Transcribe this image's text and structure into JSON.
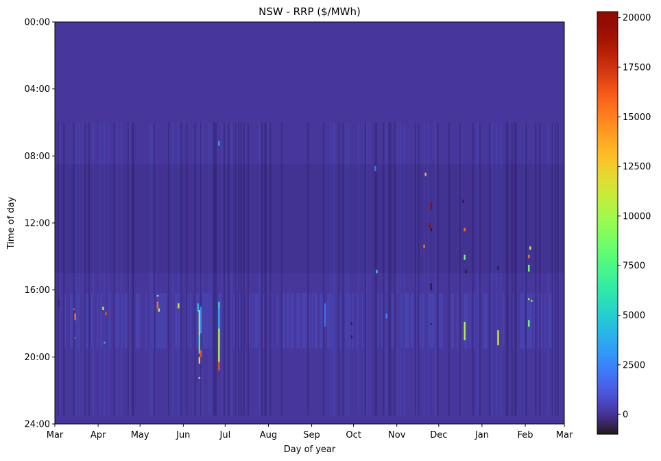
{
  "chart_data": {
    "type": "heatmap",
    "title": "NSW - RRP ($/MWh)",
    "xlabel": "Day of year",
    "ylabel": "Time of day",
    "x_ticks": [
      "Mar",
      "Apr",
      "May",
      "Jun",
      "Jul",
      "Aug",
      "Sep",
      "Oct",
      "Nov",
      "Dec",
      "Jan",
      "Feb",
      "Mar"
    ],
    "x_tick_days": [
      0,
      31,
      61,
      92,
      122,
      153,
      184,
      214,
      245,
      275,
      306,
      337,
      365
    ],
    "xlim": [
      0,
      365
    ],
    "y_ticks": [
      "00:00",
      "04:00",
      "08:00",
      "12:00",
      "16:00",
      "20:00",
      "24:00"
    ],
    "y_tick_hours": [
      0,
      4,
      8,
      12,
      16,
      20,
      24
    ],
    "ylim": [
      0,
      24
    ],
    "colorbar": {
      "colormap": "turbo",
      "vmin": -1000,
      "vmax": 20300,
      "ticks": [
        0,
        2500,
        5000,
        7500,
        10000,
        12500,
        15000,
        17500,
        20000
      ]
    },
    "background_value": 100,
    "features": [
      {
        "day": 2,
        "start_hour": 16.6,
        "end_hour": 17.0,
        "value": -600
      },
      {
        "day": 13,
        "start_hour": 17.1,
        "end_hour": 17.2,
        "value": 16500
      },
      {
        "day": 14,
        "start_hour": 17.4,
        "end_hour": 17.8,
        "value": 15500
      },
      {
        "day": 14,
        "start_hour": 18.8,
        "end_hour": 18.9,
        "value": 16500
      },
      {
        "day": 34,
        "start_hour": 17.0,
        "end_hour": 17.2,
        "value": 11000
      },
      {
        "day": 36,
        "start_hour": 17.3,
        "end_hour": 17.5,
        "value": 16500
      },
      {
        "day": 35,
        "start_hour": 19.1,
        "end_hour": 19.2,
        "value": 4000
      },
      {
        "day": 73,
        "start_hour": 16.3,
        "end_hour": 16.4,
        "value": 11500
      },
      {
        "day": 73,
        "start_hour": 16.7,
        "end_hour": 17.1,
        "value": 15500
      },
      {
        "day": 74,
        "start_hour": 17.1,
        "end_hour": 17.3,
        "value": 11000
      },
      {
        "day": 88,
        "start_hour": 16.8,
        "end_hour": 17.1,
        "value": 11500
      },
      {
        "day": 102,
        "start_hour": 16.8,
        "end_hour": 17.3,
        "value": 4000
      },
      {
        "day": 103,
        "start_hour": 17.2,
        "end_hour": 18.7,
        "value": 10500
      },
      {
        "day": 103,
        "start_hour": 18.7,
        "end_hour": 19.8,
        "value": 7000
      },
      {
        "day": 104,
        "start_hour": 19.6,
        "end_hour": 20.0,
        "value": 16500
      },
      {
        "day": 103,
        "start_hour": 20.0,
        "end_hour": 20.4,
        "value": 12500
      },
      {
        "day": 103,
        "start_hour": 21.2,
        "end_hour": 21.3,
        "value": 9500
      },
      {
        "day": 104,
        "start_hour": 17.0,
        "end_hour": 18.6,
        "value": 2500
      },
      {
        "day": 117,
        "start_hour": 7.1,
        "end_hour": 7.4,
        "value": 3200
      },
      {
        "day": 117,
        "start_hour": 16.7,
        "end_hour": 17.1,
        "value": 5500
      },
      {
        "day": 117,
        "start_hour": 17.1,
        "end_hour": 18.3,
        "value": 3800
      },
      {
        "day": 117,
        "start_hour": 18.3,
        "end_hour": 20.3,
        "value": 10500
      },
      {
        "day": 117,
        "start_hour": 20.3,
        "end_hour": 20.8,
        "value": 16500
      },
      {
        "day": 193,
        "start_hour": 16.8,
        "end_hour": 18.2,
        "value": 1800
      },
      {
        "day": 212,
        "start_hour": 17.9,
        "end_hour": 18.1,
        "value": -700
      },
      {
        "day": 212,
        "start_hour": 18.7,
        "end_hour": 18.9,
        "value": -700
      },
      {
        "day": 229,
        "start_hour": 8.6,
        "end_hour": 8.9,
        "value": 2000
      },
      {
        "day": 230,
        "start_hour": 14.8,
        "end_hour": 15.0,
        "value": 5000
      },
      {
        "day": 237,
        "start_hour": 17.4,
        "end_hour": 17.7,
        "value": 2500
      },
      {
        "day": 265,
        "start_hour": 9.0,
        "end_hour": 9.2,
        "value": 13500
      },
      {
        "day": 264,
        "start_hour": 13.3,
        "end_hour": 13.5,
        "value": 15500
      },
      {
        "day": 269,
        "start_hour": 10.8,
        "end_hour": 11.2,
        "value": 19500
      },
      {
        "day": 268,
        "start_hour": 12.0,
        "end_hour": 12.3,
        "value": 19500
      },
      {
        "day": 269,
        "start_hour": 12.3,
        "end_hour": 12.5,
        "value": -800
      },
      {
        "day": 269,
        "start_hour": 15.6,
        "end_hour": 16.0,
        "value": -800
      },
      {
        "day": 269,
        "start_hour": 18.0,
        "end_hour": 18.1,
        "value": -800
      },
      {
        "day": 292,
        "start_hour": 10.6,
        "end_hour": 10.8,
        "value": -800
      },
      {
        "day": 293,
        "start_hour": 12.3,
        "end_hour": 12.5,
        "value": 15500
      },
      {
        "day": 293,
        "start_hour": 13.9,
        "end_hour": 14.2,
        "value": 8500
      },
      {
        "day": 293,
        "start_hour": 17.9,
        "end_hour": 19.0,
        "value": 10500
      },
      {
        "day": 294,
        "start_hour": 14.8,
        "end_hour": 15.0,
        "value": -800
      },
      {
        "day": 317,
        "start_hour": 14.6,
        "end_hour": 14.8,
        "value": -800
      },
      {
        "day": 317,
        "start_hour": 18.4,
        "end_hour": 19.3,
        "value": 11500
      },
      {
        "day": 340,
        "start_hour": 13.4,
        "end_hour": 13.6,
        "value": 11000
      },
      {
        "day": 339,
        "start_hour": 13.9,
        "end_hour": 14.1,
        "value": 15500
      },
      {
        "day": 339,
        "start_hour": 14.5,
        "end_hour": 14.9,
        "value": 8500
      },
      {
        "day": 339,
        "start_hour": 16.5,
        "end_hour": 16.6,
        "value": 10500
      },
      {
        "day": 341,
        "start_hour": 16.6,
        "end_hour": 16.7,
        "value": 10500
      },
      {
        "day": 339,
        "start_hour": 17.8,
        "end_hour": 18.2,
        "value": 8500
      }
    ]
  }
}
